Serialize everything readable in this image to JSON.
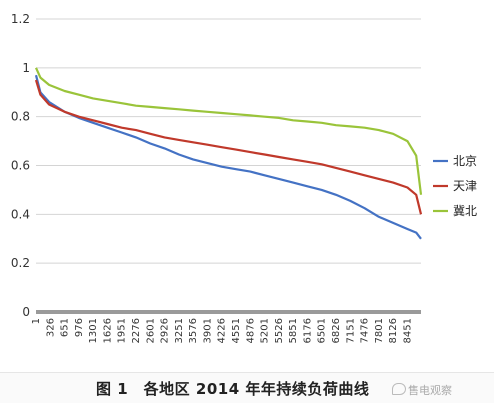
{
  "chart_data": {
    "type": "line",
    "title": "",
    "xlabel": "",
    "ylabel": "",
    "ylim": [
      0,
      1.2
    ],
    "y_ticks": [
      "0",
      "0.2",
      "0.4",
      "0.6",
      "0.8",
      "1",
      "1.2"
    ],
    "x_range": [
      1,
      8760
    ],
    "x_tick_labels": [
      "1",
      "326",
      "651",
      "976",
      "1301",
      "1626",
      "1951",
      "2276",
      "2601",
      "2926",
      "3251",
      "3576",
      "3901",
      "4226",
      "4551",
      "4876",
      "5201",
      "5526",
      "5851",
      "6176",
      "6501",
      "6826",
      "7151",
      "7476",
      "7801",
      "8126",
      "8451"
    ],
    "grid": "horizontal",
    "legend_position": "right",
    "series": [
      {
        "name": "北京",
        "color": "#4472c4",
        "points": [
          [
            1,
            0.97
          ],
          [
            100,
            0.9
          ],
          [
            300,
            0.86
          ],
          [
            651,
            0.82
          ],
          [
            976,
            0.795
          ],
          [
            1301,
            0.775
          ],
          [
            1626,
            0.755
          ],
          [
            1951,
            0.735
          ],
          [
            2276,
            0.715
          ],
          [
            2601,
            0.69
          ],
          [
            2926,
            0.67
          ],
          [
            3251,
            0.645
          ],
          [
            3576,
            0.625
          ],
          [
            3901,
            0.61
          ],
          [
            4226,
            0.595
          ],
          [
            4551,
            0.585
          ],
          [
            4876,
            0.575
          ],
          [
            5201,
            0.56
          ],
          [
            5526,
            0.545
          ],
          [
            5851,
            0.53
          ],
          [
            6176,
            0.515
          ],
          [
            6501,
            0.5
          ],
          [
            6826,
            0.48
          ],
          [
            7151,
            0.455
          ],
          [
            7476,
            0.425
          ],
          [
            7801,
            0.39
          ],
          [
            8126,
            0.365
          ],
          [
            8451,
            0.34
          ],
          [
            8650,
            0.325
          ],
          [
            8760,
            0.3
          ]
        ]
      },
      {
        "name": "天津",
        "color": "#c0392b",
        "points": [
          [
            1,
            0.95
          ],
          [
            100,
            0.89
          ],
          [
            300,
            0.85
          ],
          [
            651,
            0.82
          ],
          [
            976,
            0.8
          ],
          [
            1301,
            0.785
          ],
          [
            1626,
            0.77
          ],
          [
            1951,
            0.755
          ],
          [
            2276,
            0.745
          ],
          [
            2601,
            0.73
          ],
          [
            2926,
            0.715
          ],
          [
            3251,
            0.705
          ],
          [
            3576,
            0.695
          ],
          [
            3901,
            0.685
          ],
          [
            4226,
            0.675
          ],
          [
            4551,
            0.665
          ],
          [
            4876,
            0.655
          ],
          [
            5201,
            0.645
          ],
          [
            5526,
            0.635
          ],
          [
            5851,
            0.625
          ],
          [
            6176,
            0.615
          ],
          [
            6501,
            0.605
          ],
          [
            6826,
            0.59
          ],
          [
            7151,
            0.575
          ],
          [
            7476,
            0.56
          ],
          [
            7801,
            0.545
          ],
          [
            8126,
            0.53
          ],
          [
            8451,
            0.51
          ],
          [
            8650,
            0.48
          ],
          [
            8760,
            0.4
          ]
        ]
      },
      {
        "name": "冀北",
        "color": "#9ac43a",
        "points": [
          [
            1,
            1.0
          ],
          [
            100,
            0.96
          ],
          [
            300,
            0.93
          ],
          [
            651,
            0.905
          ],
          [
            976,
            0.89
          ],
          [
            1301,
            0.875
          ],
          [
            1626,
            0.865
          ],
          [
            1951,
            0.855
          ],
          [
            2276,
            0.845
          ],
          [
            2601,
            0.84
          ],
          [
            2926,
            0.835
          ],
          [
            3251,
            0.83
          ],
          [
            3576,
            0.825
          ],
          [
            3901,
            0.82
          ],
          [
            4226,
            0.815
          ],
          [
            4551,
            0.81
          ],
          [
            4876,
            0.805
          ],
          [
            5201,
            0.8
          ],
          [
            5526,
            0.795
          ],
          [
            5851,
            0.785
          ],
          [
            6176,
            0.78
          ],
          [
            6501,
            0.775
          ],
          [
            6826,
            0.765
          ],
          [
            7151,
            0.76
          ],
          [
            7476,
            0.755
          ],
          [
            7801,
            0.745
          ],
          [
            8126,
            0.73
          ],
          [
            8451,
            0.7
          ],
          [
            8650,
            0.64
          ],
          [
            8760,
            0.48
          ]
        ]
      }
    ]
  },
  "caption": {
    "text": "图 1　各地区 2014 年年持续负荷曲线",
    "watermark": "售电观察"
  }
}
